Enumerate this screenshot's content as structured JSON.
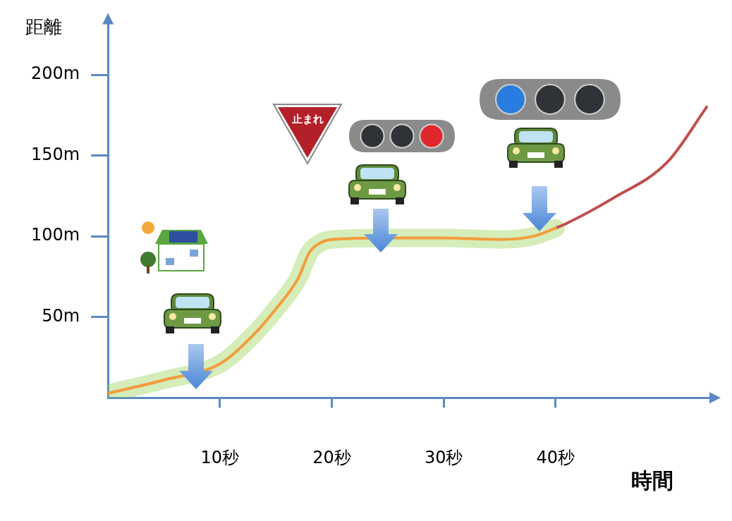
{
  "chart_data": {
    "type": "line",
    "x": [
      0,
      5,
      10,
      13,
      15,
      17,
      18,
      19,
      20,
      25,
      30,
      35,
      38,
      40,
      41,
      45,
      50,
      53.5
    ],
    "series": [
      {
        "color": "#f39c3c",
        "values": [
          2.7,
          11,
          21,
          39,
          55,
          74,
          90,
          96,
          98,
          99,
          99,
          98,
          100,
          105,
          null,
          null,
          null,
          null
        ]
      },
      {
        "color": "#c0504d",
        "values": [
          null,
          null,
          null,
          null,
          null,
          null,
          null,
          null,
          null,
          null,
          null,
          null,
          null,
          105,
          108,
          123,
          146,
          180
        ]
      }
    ],
    "xlabel": "時間",
    "ylabel": "距離",
    "xlim": [
      0,
      54
    ],
    "xticks": [
      {
        "value": 10,
        "label": "10秒"
      },
      {
        "value": 20,
        "label": "20秒"
      },
      {
        "value": 30,
        "label": "30秒"
      },
      {
        "value": 40,
        "label": "40秒"
      }
    ],
    "ylim": [
      0,
      233
    ],
    "yticks": [
      {
        "value": 50,
        "label": "50m"
      },
      {
        "value": 100,
        "label": "100m"
      },
      {
        "value": 150,
        "label": "150m"
      },
      {
        "value": 200,
        "label": "200m"
      }
    ],
    "grid": false,
    "annotations": [
      "止まれ"
    ]
  }
}
